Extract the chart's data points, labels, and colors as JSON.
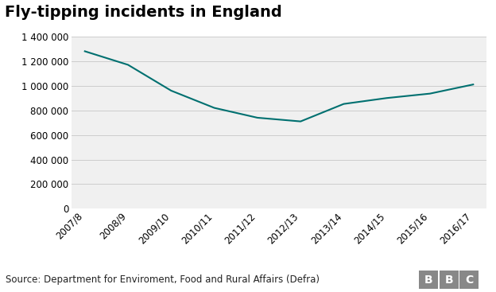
{
  "title": "Fly-tipping incidents in England",
  "x_labels": [
    "2007/8",
    "2008/9",
    "2009/10",
    "2010/11",
    "2011/12",
    "2012/13",
    "2013/14",
    "2014/15",
    "2015/16",
    "2016/17"
  ],
  "y_values": [
    1280000,
    1170000,
    960000,
    820000,
    740000,
    710000,
    852000,
    900000,
    936000,
    1010000
  ],
  "line_color": "#007070",
  "line_width": 1.5,
  "ylim": [
    0,
    1400000
  ],
  "yticks": [
    0,
    200000,
    400000,
    600000,
    800000,
    1000000,
    1200000,
    1400000
  ],
  "background_color": "#ffffff",
  "plot_bg_color": "#f0f0f0",
  "title_fontsize": 14,
  "tick_fontsize": 8.5,
  "source_text": "Source: Department for Enviroment, Food and Rural Affairs (Defra)",
  "source_fontsize": 8.5,
  "footer_bg_color": "#dddddd",
  "bbc_letter_bg": "#999999",
  "bbc_text": "BBC",
  "bbc_fontsize": 10
}
